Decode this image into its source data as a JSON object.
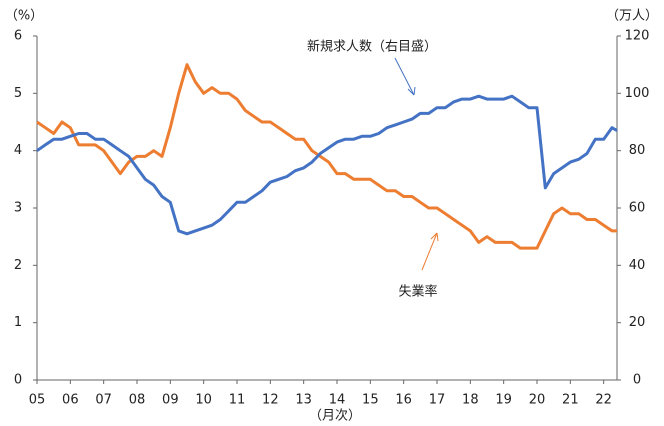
{
  "chart_data": {
    "type": "line",
    "y_label": "（%）",
    "y2_label": "（万人）",
    "x_label": "（月次）",
    "x": [
      5,
      5.25,
      5.5,
      5.75,
      6,
      6.25,
      6.5,
      6.75,
      7,
      7.25,
      7.5,
      7.75,
      8,
      8.25,
      8.5,
      8.75,
      9,
      9.25,
      9.5,
      9.75,
      10,
      10.25,
      10.5,
      10.75,
      11,
      11.25,
      11.5,
      11.75,
      12,
      12.25,
      12.5,
      12.75,
      13,
      13.25,
      13.5,
      13.75,
      14,
      14.25,
      14.5,
      14.75,
      15,
      15.25,
      15.5,
      15.75,
      16,
      16.25,
      16.5,
      16.75,
      17,
      17.25,
      17.5,
      17.75,
      18,
      18.25,
      18.5,
      18.75,
      19,
      19.25,
      19.5,
      19.75,
      20,
      20.25,
      20.5,
      20.75,
      21,
      21.25,
      21.5,
      21.75,
      22,
      22.25,
      22.4
    ],
    "xlim": [
      5,
      22.4
    ],
    "xticks": [
      {
        "value": 5,
        "label": "05"
      },
      {
        "value": 6,
        "label": "06"
      },
      {
        "value": 7,
        "label": "07"
      },
      {
        "value": 8,
        "label": "08"
      },
      {
        "value": 9,
        "label": "09"
      },
      10,
      11,
      12,
      13,
      14,
      15,
      16,
      17,
      18,
      19,
      20,
      21,
      22
    ],
    "ylim": [
      0,
      6
    ],
    "yticks": [
      0,
      1,
      2,
      3,
      4,
      5,
      6
    ],
    "y2lim": [
      0,
      120
    ],
    "y2ticks": [
      0,
      20,
      40,
      60,
      80,
      100,
      120
    ],
    "series": [
      {
        "name": "失業率",
        "color": "#ed7d31",
        "values": [
          4.5,
          4.4,
          4.3,
          4.5,
          4.4,
          4.1,
          4.1,
          4.1,
          4.0,
          3.8,
          3.6,
          3.8,
          3.9,
          3.9,
          4.0,
          3.9,
          4.4,
          5.0,
          5.5,
          5.2,
          5.0,
          5.1,
          5.0,
          5.0,
          4.9,
          4.7,
          4.6,
          4.5,
          4.5,
          4.4,
          4.3,
          4.2,
          4.2,
          4.0,
          3.9,
          3.8,
          3.6,
          3.6,
          3.5,
          3.5,
          3.5,
          3.4,
          3.3,
          3.3,
          3.2,
          3.2,
          3.1,
          3.0,
          3.0,
          2.9,
          2.8,
          2.7,
          2.6,
          2.4,
          2.5,
          2.4,
          2.4,
          2.4,
          2.3,
          2.3,
          2.3,
          2.6,
          2.9,
          3.0,
          2.9,
          2.9,
          2.8,
          2.8,
          2.7,
          2.6,
          2.6
        ]
      },
      {
        "name": "新規求人数（右目盛）",
        "color": "#4472c4",
        "axis": "y2",
        "values": [
          80,
          82,
          84,
          84,
          85,
          86,
          86,
          84,
          84,
          82,
          80,
          78,
          74,
          70,
          68,
          64,
          62,
          52,
          51,
          52,
          53,
          54,
          56,
          59,
          62,
          62,
          64,
          66,
          69,
          70,
          71,
          73,
          74,
          76,
          79,
          81,
          83,
          84,
          84,
          85,
          85,
          86,
          88,
          89,
          90,
          91,
          93,
          93,
          95,
          95,
          97,
          98,
          98,
          99,
          98,
          98,
          98,
          99,
          97,
          95,
          95,
          67,
          72,
          74,
          76,
          77,
          79,
          84,
          84,
          88,
          87
        ]
      }
    ]
  }
}
